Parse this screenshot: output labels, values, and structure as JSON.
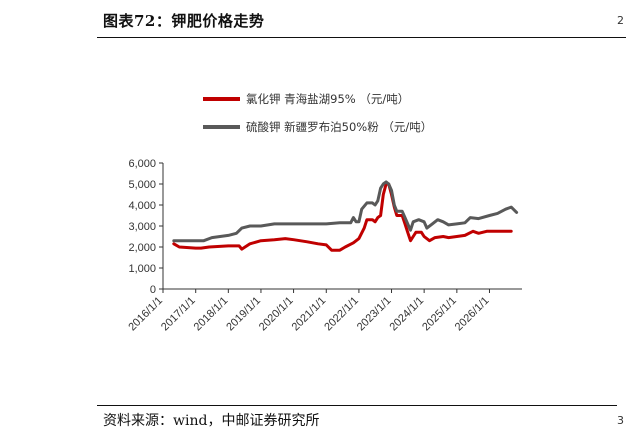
{
  "header": {
    "title": "图表72：钾肥价格走势",
    "edge_mark": "2"
  },
  "footer": {
    "source": "资料来源：wind，中邮证券研究所",
    "edge_mark": "3"
  },
  "chart_data": {
    "type": "line",
    "title": "",
    "xlabel": "",
    "ylabel": "",
    "ylim": [
      0,
      6000
    ],
    "xlim": [
      "2016-01-01",
      "2026-12-31"
    ],
    "y_ticks": [
      0,
      1000,
      2000,
      3000,
      4000,
      5000,
      6000
    ],
    "y_tick_labels": [
      "0",
      "1,000",
      "2,000",
      "3,000",
      "4,000",
      "5,000",
      "6,000"
    ],
    "x_ticks": [
      "2016-01-01",
      "2017-01-01",
      "2018-01-01",
      "2019-01-01",
      "2020-01-01",
      "2021-01-01",
      "2022-01-01",
      "2023-01-01",
      "2024-01-01",
      "2025-01-01",
      "2026-01-01"
    ],
    "x_tick_labels": [
      "2016/1/1",
      "2017/1/1",
      "2018/1/1",
      "2019/1/1",
      "2020/1/1",
      "2021/1/1",
      "2022/1/1",
      "2023/1/1",
      "2024/1/1",
      "2025/1/1",
      "2026/1/1"
    ],
    "grid": false,
    "legend_position": "top",
    "series": [
      {
        "name": "氯化钾 青海盐湖95% （元/吨）",
        "color": "#c00000",
        "points": [
          [
            "2016-05-01",
            2150
          ],
          [
            "2016-07-01",
            2000
          ],
          [
            "2017-01-01",
            1950
          ],
          [
            "2017-03-01",
            1950
          ],
          [
            "2017-06-01",
            2000
          ],
          [
            "2018-01-01",
            2050
          ],
          [
            "2018-05-01",
            2050
          ],
          [
            "2018-06-01",
            1900
          ],
          [
            "2018-09-01",
            2150
          ],
          [
            "2019-01-01",
            2300
          ],
          [
            "2019-06-01",
            2350
          ],
          [
            "2019-10-01",
            2400
          ],
          [
            "2020-01-01",
            2350
          ],
          [
            "2020-06-01",
            2250
          ],
          [
            "2020-10-01",
            2150
          ],
          [
            "2021-01-01",
            2100
          ],
          [
            "2021-03-01",
            1850
          ],
          [
            "2021-06-01",
            1850
          ],
          [
            "2021-08-01",
            2000
          ],
          [
            "2021-11-01",
            2200
          ],
          [
            "2022-01-01",
            2400
          ],
          [
            "2022-03-01",
            2900
          ],
          [
            "2022-04-01",
            3300
          ],
          [
            "2022-06-01",
            3300
          ],
          [
            "2022-07-01",
            3200
          ],
          [
            "2022-08-01",
            3400
          ],
          [
            "2022-09-01",
            3500
          ],
          [
            "2022-10-01",
            4500
          ],
          [
            "2022-11-01",
            5000
          ],
          [
            "2022-12-01",
            5000
          ],
          [
            "2023-01-01",
            4500
          ],
          [
            "2023-02-01",
            3900
          ],
          [
            "2023-03-01",
            3500
          ],
          [
            "2023-05-01",
            3500
          ],
          [
            "2023-06-01",
            3100
          ],
          [
            "2023-07-01",
            2700
          ],
          [
            "2023-08-01",
            2300
          ],
          [
            "2023-09-01",
            2500
          ],
          [
            "2023-10-01",
            2700
          ],
          [
            "2023-12-01",
            2700
          ],
          [
            "2024-01-01",
            2500
          ],
          [
            "2024-03-01",
            2300
          ],
          [
            "2024-05-01",
            2450
          ],
          [
            "2024-08-01",
            2500
          ],
          [
            "2024-10-01",
            2450
          ],
          [
            "2025-01-01",
            2500
          ],
          [
            "2025-04-01",
            2550
          ],
          [
            "2025-07-01",
            2750
          ],
          [
            "2025-09-01",
            2650
          ],
          [
            "2025-12-01",
            2750
          ],
          [
            "2026-06-01",
            2750
          ],
          [
            "2026-09-01",
            2750
          ]
        ]
      },
      {
        "name": "硫酸钾 新疆罗布泊50%粉 （元/吨）",
        "color": "#595959",
        "points": [
          [
            "2016-05-01",
            2300
          ],
          [
            "2017-01-01",
            2300
          ],
          [
            "2017-04-01",
            2300
          ],
          [
            "2017-07-01",
            2450
          ],
          [
            "2018-01-01",
            2550
          ],
          [
            "2018-04-01",
            2650
          ],
          [
            "2018-06-01",
            2900
          ],
          [
            "2018-09-01",
            3000
          ],
          [
            "2019-01-01",
            3000
          ],
          [
            "2019-06-01",
            3100
          ],
          [
            "2020-01-01",
            3100
          ],
          [
            "2021-01-01",
            3100
          ],
          [
            "2021-06-01",
            3150
          ],
          [
            "2021-10-01",
            3150
          ],
          [
            "2021-11-01",
            3400
          ],
          [
            "2021-12-01",
            3200
          ],
          [
            "2022-01-01",
            3200
          ],
          [
            "2022-02-01",
            3800
          ],
          [
            "2022-04-01",
            4100
          ],
          [
            "2022-06-01",
            4100
          ],
          [
            "2022-07-01",
            4000
          ],
          [
            "2022-08-01",
            4200
          ],
          [
            "2022-09-01",
            4800
          ],
          [
            "2022-10-01",
            5000
          ],
          [
            "2022-11-01",
            5100
          ],
          [
            "2022-12-01",
            5000
          ],
          [
            "2023-01-01",
            4700
          ],
          [
            "2023-02-01",
            4000
          ],
          [
            "2023-03-01",
            3700
          ],
          [
            "2023-05-01",
            3700
          ],
          [
            "2023-06-01",
            3400
          ],
          [
            "2023-07-01",
            3100
          ],
          [
            "2023-08-01",
            2800
          ],
          [
            "2023-09-01",
            3200
          ],
          [
            "2023-11-01",
            3300
          ],
          [
            "2024-01-01",
            3200
          ],
          [
            "2024-02-01",
            2900
          ],
          [
            "2024-04-01",
            3100
          ],
          [
            "2024-06-01",
            3300
          ],
          [
            "2024-08-01",
            3200
          ],
          [
            "2024-10-01",
            3050
          ],
          [
            "2025-01-01",
            3100
          ],
          [
            "2025-04-01",
            3150
          ],
          [
            "2025-06-01",
            3400
          ],
          [
            "2025-09-01",
            3350
          ],
          [
            "2026-01-01",
            3500
          ],
          [
            "2026-04-01",
            3600
          ],
          [
            "2026-07-01",
            3800
          ],
          [
            "2026-09-01",
            3900
          ],
          [
            "2026-11-01",
            3650
          ]
        ]
      }
    ]
  }
}
